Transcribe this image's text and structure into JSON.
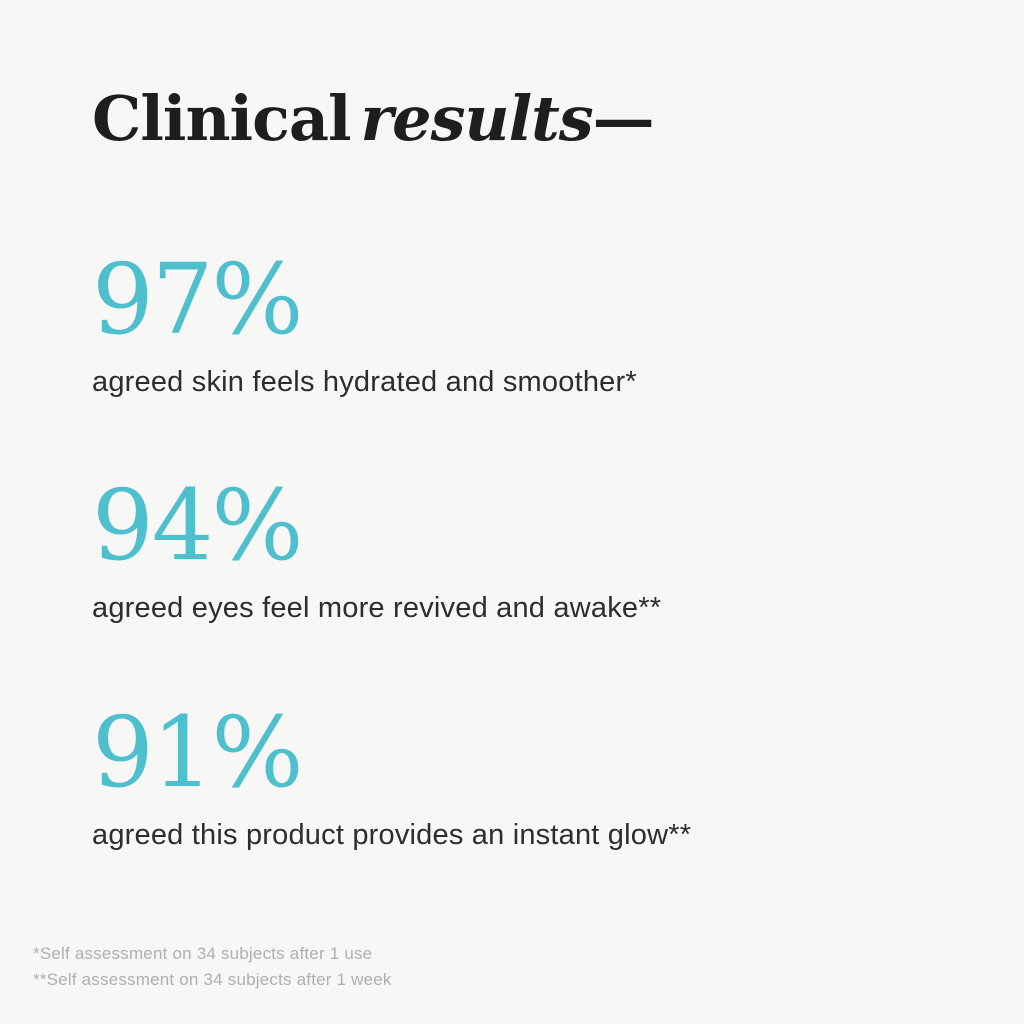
{
  "colors": {
    "background": "#F7F7F5",
    "title": "#1E1E1E",
    "body_text": "#2D2D2D",
    "accent_teal": "#4DBFCD",
    "footnote_gray": "#AFAFAF"
  },
  "title": {
    "regular": "Clinical",
    "italic": "results",
    "dash": "—"
  },
  "stats": [
    {
      "value": "97%",
      "description": "agreed skin feels hydrated and smoother*"
    },
    {
      "value": "94%",
      "description": "agreed eyes feel more revived and awake**"
    },
    {
      "value": "91%",
      "description": "agreed this product provides an instant glow**"
    }
  ],
  "footnotes": [
    "*Self assessment on 34 subjects after 1 use",
    "**Self assessment on 34 subjects after 1 week"
  ]
}
